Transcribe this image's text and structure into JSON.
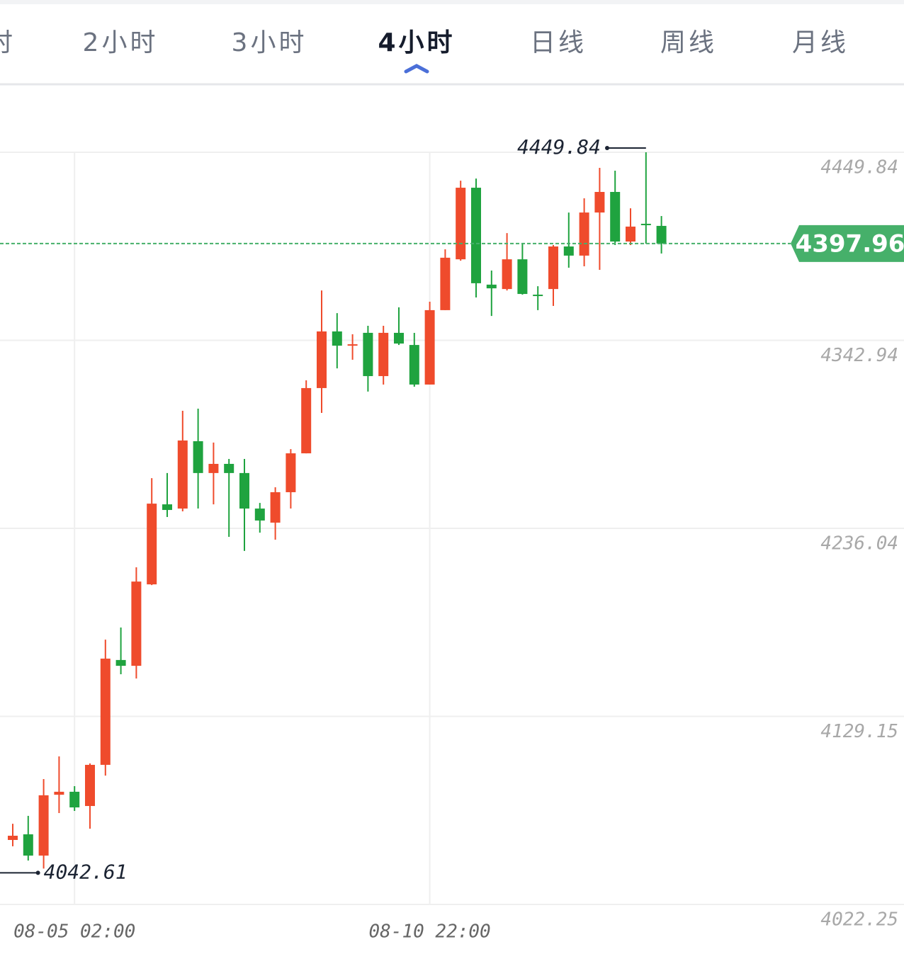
{
  "tabs": {
    "items": [
      "时",
      "2小时",
      "3小时",
      "4小时",
      "日线",
      "周线",
      "月线"
    ],
    "active": 3
  },
  "chart_data": {
    "type": "candlestick",
    "categories": [
      null,
      null,
      null,
      null,
      "08-05 02:00",
      null,
      null,
      null,
      null,
      null,
      null,
      null,
      null,
      null,
      null,
      null,
      null,
      null,
      null,
      null,
      null,
      null,
      null,
      null,
      null,
      null,
      null,
      "08-10 22:00",
      null,
      null,
      null,
      null,
      null,
      null,
      null,
      null,
      null,
      null,
      null,
      null,
      null,
      null,
      null
    ],
    "open": [
      4058.9,
      4062.1,
      4050.0,
      4084.6,
      4086.3,
      4078.2,
      4101.6,
      4161.2,
      4157.9,
      4204.2,
      4249.7,
      4247.3,
      4285.6,
      4267.5,
      4272.7,
      4267.5,
      4247.3,
      4239.3,
      4256.6,
      4278.7,
      4315.8,
      4348.0,
      4339.9,
      4347.2,
      4322.6,
      4347.2,
      4340.3,
      4317.8,
      4360.1,
      4389.0,
      4429.7,
      4374.6,
      4372.1,
      4389.0,
      4368.9,
      4372.1,
      4396.3,
      4391.1,
      4415.6,
      4427.3,
      4399.1,
      4409.2,
      4408.0
    ],
    "high": [
      4068.1,
      4072.6,
      4093.5,
      4106.4,
      4089.5,
      4102.4,
      4172.8,
      4179.7,
      4213.9,
      4264.6,
      4267.5,
      4302.9,
      4304.1,
      4284.8,
      4275.5,
      4275.5,
      4250.5,
      4259.4,
      4281.1,
      4320.2,
      4371.3,
      4358.4,
      4346.4,
      4351.2,
      4351.2,
      4361.7,
      4347.2,
      4364.9,
      4394.7,
      4433.7,
      4434.9,
      4382.6,
      4403.9,
      4397.9,
      4373.7,
      4397.1,
      4415.6,
      4423.7,
      4441.0,
      4439.4,
      4418.0,
      4449.84,
      4413.6
    ],
    "low": [
      4055.3,
      4047.2,
      4042.61,
      4074.2,
      4075.4,
      4065.3,
      4095.5,
      4153.1,
      4150.7,
      4203.8,
      4242.5,
      4245.7,
      4247.3,
      4249.7,
      4231.2,
      4223.2,
      4233.6,
      4229.6,
      4247.3,
      4278.7,
      4301.7,
      4327.0,
      4331.9,
      4313.8,
      4317.8,
      4340.3,
      4316.6,
      4317.8,
      4360.1,
      4388.2,
      4367.3,
      4356.8,
      4371.3,
      4368.9,
      4360.1,
      4362.5,
      4384.2,
      4385.0,
      4383.0,
      4397.1,
      4397.1,
      4397.9,
      4392.3
    ],
    "close": [
      4061.3,
      4050.0,
      4084.3,
      4086.3,
      4077.4,
      4101.6,
      4162.0,
      4157.9,
      4205.8,
      4250.1,
      4246.5,
      4286.0,
      4267.5,
      4272.7,
      4267.5,
      4247.3,
      4240.5,
      4256.6,
      4278.7,
      4315.8,
      4348.0,
      4339.9,
      4340.7,
      4322.6,
      4347.2,
      4341.1,
      4317.8,
      4360.1,
      4389.9,
      4429.7,
      4375.4,
      4372.5,
      4389.0,
      4369.3,
      4368.1,
      4396.3,
      4391.1,
      4415.6,
      4427.3,
      4399.1,
      4407.6,
      4408.4,
      4397.96
    ],
    "up_color": "#ef4b2c",
    "down_color": "#1fa33f",
    "ylim": [
      4022.25,
      4488.1
    ],
    "yticks": [
      4022.25,
      4129.15,
      4236.04,
      4342.94,
      4449.84
    ],
    "grid": true,
    "high_marker": 4449.84,
    "low_marker": 4042.61,
    "last_price": 4397.96,
    "last_price_color": "#46b06a"
  }
}
